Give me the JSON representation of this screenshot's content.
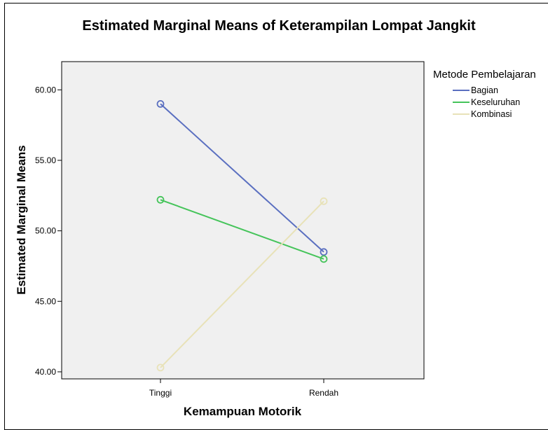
{
  "chart_data": {
    "type": "line",
    "title": "Estimated Marginal Means of Keterampilan Lompat Jangkit",
    "xlabel": "Kemampuan Motorik",
    "ylabel": "Estimated Marginal Means",
    "categories": [
      "Tinggi",
      "Rendah"
    ],
    "ylim": [
      39.5,
      62.0
    ],
    "yticks": [
      "40.00",
      "45.00",
      "50.00",
      "55.00",
      "60.00"
    ],
    "legend_title": "Metode Pembelajaran",
    "legend_position": "right",
    "grid": false,
    "plot_background": "#f0f0f0",
    "series": [
      {
        "name": "Bagian",
        "color": "#5a6fc0",
        "values": [
          59.0,
          48.5
        ]
      },
      {
        "name": "Keseluruhan",
        "color": "#45c45a",
        "values": [
          52.2,
          48.0
        ]
      },
      {
        "name": "Kombinasi",
        "color": "#e8e2b8",
        "values": [
          40.3,
          52.1
        ]
      }
    ]
  }
}
